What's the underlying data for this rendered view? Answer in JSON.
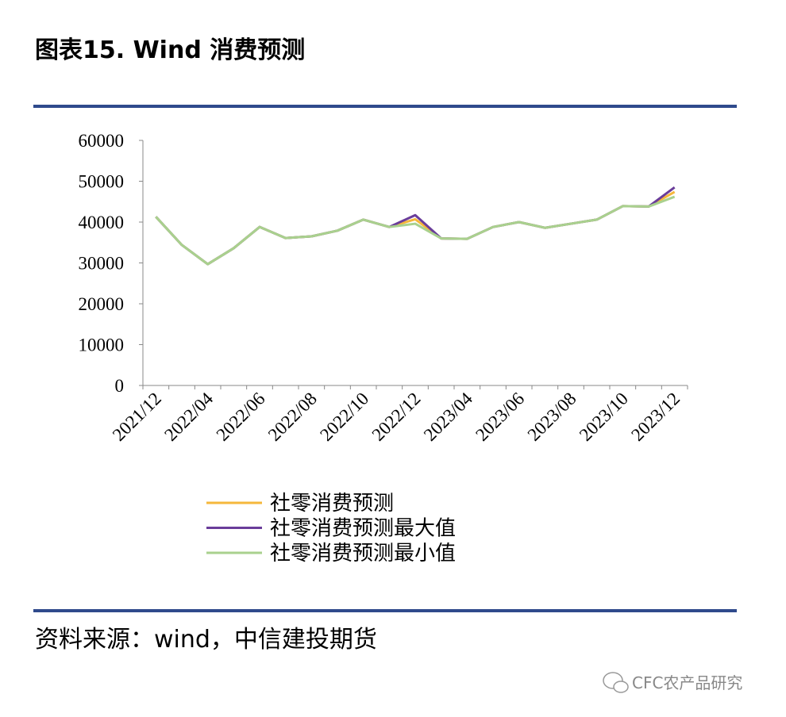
{
  "header": {
    "title": "图表15. Wind 消费预测"
  },
  "chart_data": {
    "type": "line",
    "categories": [
      "2021/12",
      null,
      "2022/04",
      null,
      "2022/06",
      null,
      "2022/08",
      null,
      "2022/10",
      null,
      "2022/12",
      null,
      "2023/04",
      null,
      "2023/06",
      null,
      "2023/08",
      null,
      "2023/10",
      null,
      "2023/12"
    ],
    "series": [
      {
        "name": "社零消费预测",
        "color": "#f5b73b",
        "values": [
          41300,
          34400,
          29700,
          33600,
          38800,
          36100,
          36500,
          37900,
          40600,
          38800,
          40700,
          36000,
          35900,
          38800,
          40000,
          38600,
          39600,
          40600,
          43900,
          43800,
          47400
        ]
      },
      {
        "name": "社零消费预测最大值",
        "color": "#6a3d9a",
        "values": [
          41300,
          34400,
          29700,
          33600,
          38800,
          36100,
          36500,
          37900,
          40600,
          38800,
          41700,
          36000,
          35900,
          38800,
          40000,
          38600,
          39600,
          40600,
          43900,
          43800,
          48500
        ]
      },
      {
        "name": "社零消费预测最小值",
        "color": "#a9d18e",
        "values": [
          41300,
          34400,
          29700,
          33600,
          38800,
          36100,
          36500,
          37900,
          40600,
          38800,
          39600,
          36000,
          35900,
          38800,
          40000,
          38600,
          39600,
          40600,
          43900,
          43800,
          46200
        ]
      }
    ],
    "ylim": [
      0,
      60000
    ],
    "yticks": [
      0,
      10000,
      20000,
      30000,
      40000,
      50000,
      60000
    ],
    "grid": false
  },
  "source": {
    "text": "资料来源：wind，中信建投期货"
  },
  "watermark": {
    "text": "CFC农产品研究"
  }
}
